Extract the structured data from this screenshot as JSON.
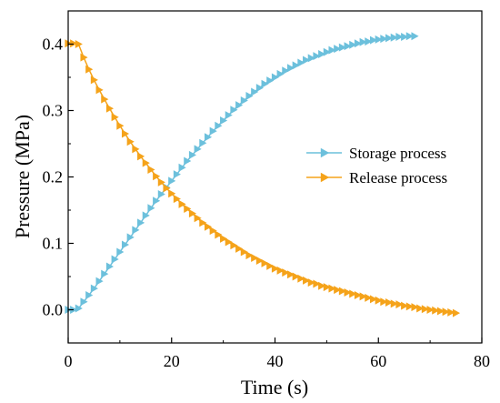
{
  "chart_data": {
    "type": "line",
    "xlabel": "Time (s)",
    "ylabel": "Pressure (MPa)",
    "xlim": [
      0,
      80
    ],
    "ylim": [
      -0.05,
      0.45
    ],
    "xticks": [
      0,
      20,
      40,
      60,
      80
    ],
    "yticks": [
      0.0,
      0.1,
      0.2,
      0.3,
      0.4
    ],
    "xtick_labels": [
      "0",
      "20",
      "40",
      "60",
      "80"
    ],
    "ytick_labels": [
      "0.0",
      "0.1",
      "0.2",
      "0.3",
      "0.4"
    ],
    "grid": false,
    "legend_position": "right-middle",
    "series": [
      {
        "name": "Storage process",
        "color": "#6cc0dc",
        "marker": "right-triangle",
        "x": [
          0,
          1,
          2,
          3,
          4,
          5,
          6,
          7,
          8,
          9,
          10,
          11,
          12,
          13,
          14,
          15,
          16,
          17,
          18,
          19,
          20,
          21,
          22,
          23,
          24,
          25,
          26,
          27,
          28,
          29,
          30,
          31,
          32,
          33,
          34,
          35,
          36,
          37,
          38,
          39,
          40,
          41,
          42,
          43,
          44,
          45,
          46,
          47,
          48,
          49,
          50,
          51,
          52,
          53,
          54,
          55,
          56,
          57,
          58,
          59,
          60,
          61,
          62,
          63,
          64,
          65,
          66,
          67
        ],
        "y": [
          0.0,
          0.0,
          0.002,
          0.012,
          0.022,
          0.032,
          0.043,
          0.054,
          0.065,
          0.076,
          0.087,
          0.098,
          0.109,
          0.12,
          0.131,
          0.142,
          0.153,
          0.164,
          0.174,
          0.184,
          0.194,
          0.204,
          0.214,
          0.224,
          0.233,
          0.242,
          0.251,
          0.26,
          0.269,
          0.277,
          0.285,
          0.293,
          0.301,
          0.308,
          0.315,
          0.322,
          0.328,
          0.334,
          0.34,
          0.345,
          0.35,
          0.355,
          0.36,
          0.364,
          0.368,
          0.372,
          0.376,
          0.379,
          0.382,
          0.385,
          0.388,
          0.391,
          0.393,
          0.395,
          0.397,
          0.399,
          0.401,
          0.403,
          0.404,
          0.406,
          0.407,
          0.408,
          0.409,
          0.41,
          0.411,
          0.411,
          0.412,
          0.412
        ]
      },
      {
        "name": "Release process",
        "color": "#f5a31a",
        "marker": "right-triangle",
        "x": [
          0,
          1,
          2,
          3,
          4,
          5,
          6,
          7,
          8,
          9,
          10,
          11,
          12,
          13,
          14,
          15,
          16,
          17,
          18,
          19,
          20,
          21,
          22,
          23,
          24,
          25,
          26,
          27,
          28,
          29,
          30,
          31,
          32,
          33,
          34,
          35,
          36,
          37,
          38,
          39,
          40,
          41,
          42,
          43,
          44,
          45,
          46,
          47,
          48,
          49,
          50,
          51,
          52,
          53,
          54,
          55,
          56,
          57,
          58,
          59,
          60,
          61,
          62,
          63,
          64,
          65,
          66,
          67,
          68,
          69,
          70,
          71,
          72,
          73,
          74,
          75
        ],
        "y": [
          0.401,
          0.401,
          0.4,
          0.38,
          0.362,
          0.346,
          0.331,
          0.317,
          0.303,
          0.29,
          0.277,
          0.265,
          0.253,
          0.242,
          0.231,
          0.221,
          0.211,
          0.201,
          0.192,
          0.183,
          0.175,
          0.167,
          0.159,
          0.152,
          0.145,
          0.138,
          0.131,
          0.125,
          0.119,
          0.113,
          0.107,
          0.102,
          0.097,
          0.092,
          0.087,
          0.082,
          0.078,
          0.074,
          0.07,
          0.066,
          0.062,
          0.059,
          0.056,
          0.053,
          0.05,
          0.047,
          0.044,
          0.041,
          0.039,
          0.036,
          0.034,
          0.032,
          0.03,
          0.028,
          0.026,
          0.024,
          0.022,
          0.02,
          0.018,
          0.016,
          0.014,
          0.012,
          0.011,
          0.009,
          0.008,
          0.006,
          0.005,
          0.004,
          0.002,
          0.001,
          0.0,
          -0.001,
          -0.002,
          -0.003,
          -0.004,
          -0.005
        ]
      }
    ]
  }
}
